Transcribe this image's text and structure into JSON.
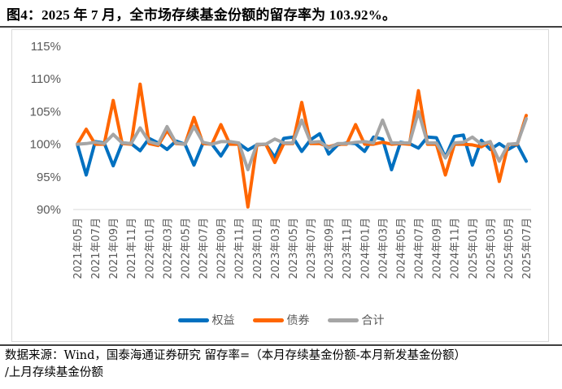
{
  "title": "图4：2025 年 7 月，全市场存续基金份额的留存率为 103.92%。",
  "legend": [
    {
      "label": "权益",
      "color": "#0070C0"
    },
    {
      "label": "债券",
      "color": "#FF6600"
    },
    {
      "label": "合计",
      "color": "#A5A5A5"
    }
  ],
  "footer": {
    "line1": "数据来源：Wind，国泰海通证券研究  留存率=（本月存续基金份额-本月新发基金份额）",
    "line2": "/上月存续基金份额"
  },
  "chart_data": {
    "type": "line",
    "title": "2025 年 7 月，全市场存续基金份额的留存率为 103.92%",
    "xlabel": "",
    "ylabel": "",
    "ylim": [
      90,
      115
    ],
    "yticks": [
      "90%",
      "95%",
      "100%",
      "105%",
      "110%",
      "115%"
    ],
    "grid": false,
    "legend_position": "bottom",
    "x": [
      "2021年05月",
      "2021年06月",
      "2021年07月",
      "2021年08月",
      "2021年09月",
      "2021年10月",
      "2021年11月",
      "2021年12月",
      "2022年01月",
      "2022年02月",
      "2022年03月",
      "2022年04月",
      "2022年05月",
      "2022年06月",
      "2022年07月",
      "2022年08月",
      "2022年09月",
      "2022年10月",
      "2022年11月",
      "2022年12月",
      "2023年01月",
      "2023年02月",
      "2023年03月",
      "2023年04月",
      "2023年05月",
      "2023年06月",
      "2023年07月",
      "2023年08月",
      "2023年09月",
      "2023年10月",
      "2023年11月",
      "2023年12月",
      "2024年01月",
      "2024年02月",
      "2024年03月",
      "2024年04月",
      "2024年05月",
      "2024年06月",
      "2024年07月",
      "2024年08月",
      "2024年09月",
      "2024年10月",
      "2024年11月",
      "2024年12月",
      "2025年01月",
      "2025年02月",
      "2025年03月",
      "2025年04月",
      "2025年05月",
      "2025年06月",
      "2025年07月"
    ],
    "xtick_labels": [
      "2021年05月",
      "2021年07月",
      "2021年09月",
      "2021年11月",
      "2022年01月",
      "2022年03月",
      "2022年05月",
      "2022年07月",
      "2022年09月",
      "2022年11月",
      "2023年01月",
      "2023年03月",
      "2023年05月",
      "2023年07月",
      "2023年09月",
      "2023年11月",
      "2024年01月",
      "2024年03月",
      "2024年05月",
      "2024年07月",
      "2024年09月",
      "2024年11月",
      "2025年01月",
      "2025年03月",
      "2025年05月",
      "2025年07月"
    ],
    "series": [
      {
        "name": "权益",
        "color": "#0070C0",
        "values": [
          100,
          95.3,
          100.4,
          100.2,
          96.7,
          100.2,
          100.1,
          99.0,
          100.9,
          100.2,
          99.2,
          100.5,
          100.0,
          96.8,
          100.2,
          100.0,
          98.2,
          100.4,
          100.1,
          99.1,
          99.9,
          100.0,
          98.0,
          100.9,
          101.1,
          98.9,
          100.7,
          101.6,
          98.5,
          99.9,
          100.2,
          100.1,
          98.9,
          101.1,
          100.8,
          96.1,
          100.3,
          100.1,
          99.4,
          101.1,
          101.0,
          98.0,
          101.2,
          101.4,
          96.8,
          100.6,
          99.2,
          100.1,
          99.2,
          100.0,
          97.4
        ]
      },
      {
        "name": "债券",
        "color": "#FF6600",
        "values": [
          100,
          102.3,
          100.0,
          100.0,
          106.7,
          100.1,
          100.0,
          109.2,
          100.1,
          99.8,
          102.1,
          100.1,
          100.0,
          104.1,
          100.1,
          100.0,
          103.0,
          100.0,
          100.0,
          90.4,
          99.9,
          100.0,
          97.2,
          100.1,
          100.1,
          106.4,
          100.1,
          100.1,
          99.6,
          100.0,
          100.0,
          103.0,
          100.0,
          100.0,
          100.3,
          100.0,
          100.1,
          100.0,
          108.2,
          100.0,
          100.0,
          95.3,
          100.0,
          100.0,
          99.9,
          99.6,
          100.4,
          94.3,
          100.0,
          100.0,
          104.4
        ]
      },
      {
        "name": "合计",
        "color": "#A5A5A5",
        "values": [
          100,
          100.1,
          100.3,
          100.1,
          101.5,
          100.2,
          100.1,
          102.5,
          100.4,
          100.0,
          102.7,
          100.2,
          100.0,
          102.7,
          100.3,
          100.0,
          100.4,
          100.4,
          100.2,
          96.1,
          100.0,
          100.0,
          100.8,
          100.2,
          100.2,
          103.7,
          100.3,
          100.4,
          99.4,
          100.1,
          100.1,
          100.3,
          100.4,
          100.2,
          103.7,
          100.2,
          100.2,
          100.2,
          105.0,
          100.2,
          100.2,
          97.9,
          100.2,
          100.3,
          101.1,
          100.0,
          100.4,
          97.4,
          100.0,
          100.1,
          103.9
        ]
      }
    ]
  }
}
